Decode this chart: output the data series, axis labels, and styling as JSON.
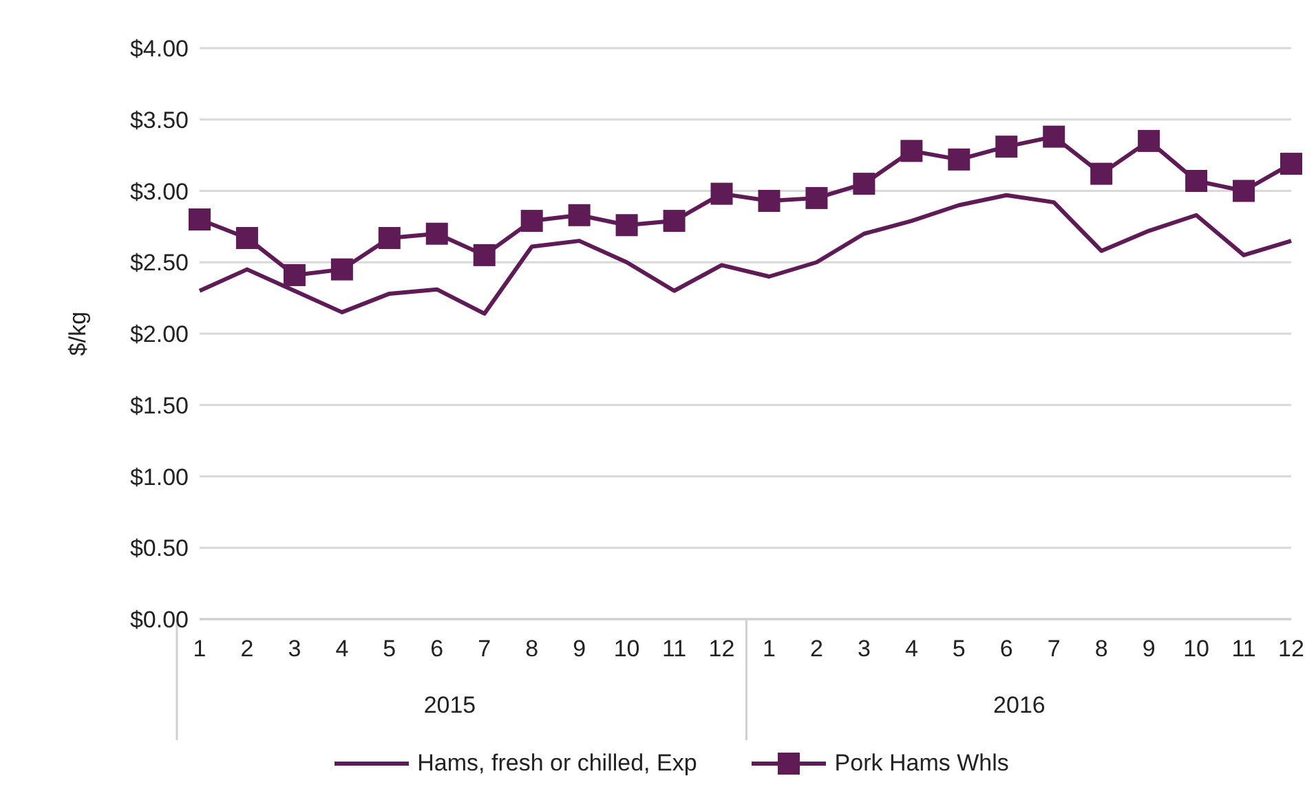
{
  "chart_data": {
    "type": "line",
    "ylabel": "$/kg",
    "categories": [
      "1",
      "2",
      "3",
      "4",
      "5",
      "6",
      "7",
      "8",
      "9",
      "10",
      "11",
      "12",
      "1",
      "2",
      "3",
      "4",
      "5",
      "6",
      "7",
      "8",
      "9",
      "10",
      "11",
      "12"
    ],
    "annotations": [
      "2015",
      "2016"
    ],
    "series": [
      {
        "name": "Hams, fresh or chilled, Exp",
        "color": "#5e1b55",
        "marker": "none",
        "values": [
          2.3,
          2.45,
          2.3,
          2.15,
          2.28,
          2.31,
          2.14,
          2.61,
          2.65,
          2.5,
          2.3,
          2.48,
          2.4,
          2.5,
          2.7,
          2.79,
          2.9,
          2.97,
          2.92,
          2.58,
          2.72,
          2.83,
          2.55,
          2.65
        ]
      },
      {
        "name": "Pork Hams Whls",
        "color": "#5e1b55",
        "marker": "square",
        "values": [
          2.8,
          2.67,
          2.41,
          2.45,
          2.67,
          2.7,
          2.55,
          2.79,
          2.83,
          2.76,
          2.79,
          2.98,
          2.93,
          2.95,
          3.05,
          3.28,
          3.22,
          3.31,
          3.38,
          3.12,
          3.35,
          3.07,
          3.0,
          3.19
        ]
      }
    ],
    "ylim": [
      0,
      4
    ],
    "yticks": [
      {
        "value": 0,
        "label": "$0.00"
      },
      {
        "value": 0.5,
        "label": "$0.50"
      },
      {
        "value": 1,
        "label": "$1.00"
      },
      {
        "value": 1.5,
        "label": "$1.50"
      },
      {
        "value": 2,
        "label": "$2.00"
      },
      {
        "value": 2.5,
        "label": "$2.50"
      },
      {
        "value": 3,
        "label": "$3.00"
      },
      {
        "value": 3.5,
        "label": "$3.50"
      },
      {
        "value": 4,
        "label": "$4.00"
      }
    ],
    "grid": "y",
    "legend": "bottom"
  }
}
